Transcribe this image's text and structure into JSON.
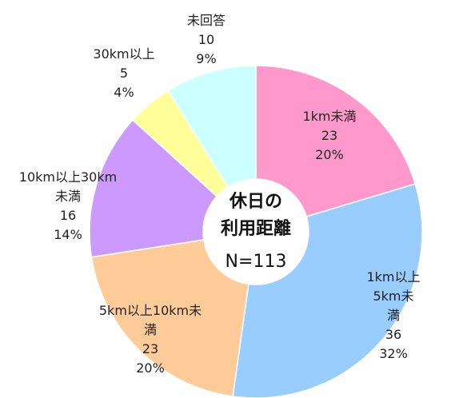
{
  "chart_data": {
    "type": "donut",
    "title": "休日の\n利用距離",
    "subtitle": "N=113",
    "categories": [
      "1km未満",
      "1km以上5km未\n満",
      "5km以上10km未\n満",
      "10km以上30km\n未満",
      "30km以上",
      "未回答"
    ],
    "values": [
      23,
      36,
      23,
      16,
      5,
      10
    ],
    "percent_labels": [
      "20%",
      "32%",
      "20%",
      "14%",
      "4%",
      "9%"
    ],
    "colors": [
      "#ff99cc",
      "#99ccff",
      "#ffcc99",
      "#cc99ff",
      "#ffff99",
      "#ccffff"
    ]
  }
}
